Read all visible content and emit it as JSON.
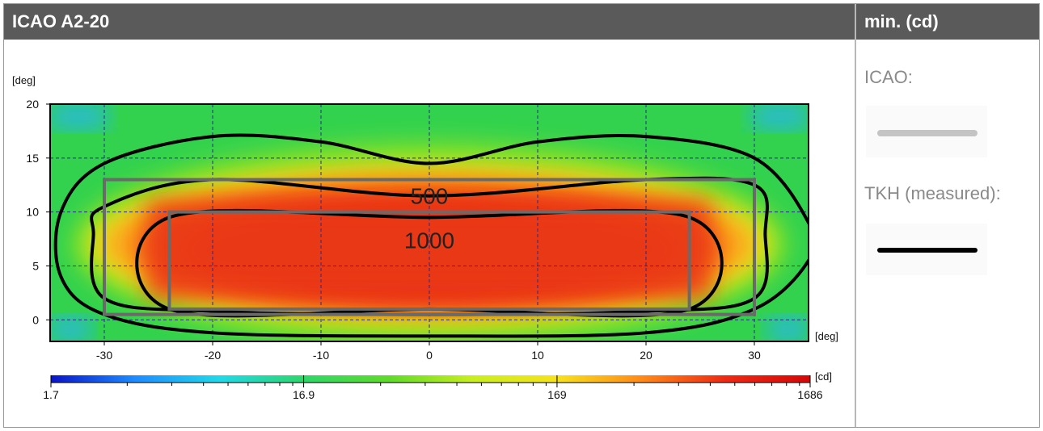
{
  "header": {
    "title": "ICAO A2-20",
    "side_title": "min. (cd)"
  },
  "legend_panel": {
    "items": [
      {
        "label": "ICAO:",
        "line_color": "#c4c4c4",
        "icon": "light-gray-line"
      },
      {
        "label": "TKH (measured):",
        "line_color": "#000000",
        "icon": "black-line"
      }
    ]
  },
  "chart_data": {
    "type": "heatmap",
    "title": "",
    "xlabel": "[deg]",
    "ylabel": "[deg]",
    "xlim": [
      -35,
      35
    ],
    "ylim": [
      -2,
      20
    ],
    "x_ticks": [
      -30,
      -20,
      -10,
      0,
      10,
      20,
      30
    ],
    "y_ticks": [
      0,
      5,
      10,
      15,
      20
    ],
    "grid": true,
    "colorbar": {
      "unit": "[cd]",
      "scale": "log",
      "min": 1.7,
      "max": 1686,
      "tick_labels": [
        "1.7",
        "16.9",
        "169",
        "1686"
      ],
      "tick_values": [
        1.7,
        16.9,
        169,
        1686
      ],
      "colors": [
        "#0a14c8",
        "#1e8cff",
        "#22d8e8",
        "#2fd56a",
        "#5fda2a",
        "#c8ee20",
        "#f6e21c",
        "#ff8a18",
        "#ec2a14",
        "#d40808"
      ]
    },
    "icao_boxes": [
      {
        "label": "500",
        "x": [
          -30,
          30
        ],
        "y": [
          0.5,
          13
        ]
      },
      {
        "label": "1000",
        "x": [
          -24,
          24
        ],
        "y": [
          1,
          10
        ]
      }
    ],
    "measured_contours": [
      {
        "name": "outer",
        "points": [
          [
            -30,
            14.5
          ],
          [
            -20,
            17
          ],
          [
            -10,
            16.5
          ],
          [
            0,
            14.5
          ],
          [
            10,
            16.5
          ],
          [
            20,
            17
          ],
          [
            30,
            15
          ],
          [
            35,
            9
          ],
          [
            35,
            5.5
          ],
          [
            30,
            1
          ],
          [
            20,
            -1.2
          ],
          [
            0,
            -1.5
          ],
          [
            -20,
            -1.2
          ],
          [
            -30,
            0.5
          ],
          [
            -34,
            4
          ],
          [
            -34,
            10
          ]
        ]
      },
      {
        "name": "500",
        "points": [
          [
            -30,
            10.5
          ],
          [
            -20,
            13
          ],
          [
            0,
            11.5
          ],
          [
            20,
            13
          ],
          [
            30,
            12.5
          ],
          [
            31,
            8
          ],
          [
            30,
            2
          ],
          [
            20,
            0.8
          ],
          [
            0,
            0.5
          ],
          [
            -20,
            0.8
          ],
          [
            -30,
            2
          ],
          [
            -31,
            8
          ]
        ]
      },
      {
        "name": "1000",
        "points": [
          [
            -24,
            9.5
          ],
          [
            0,
            9.5
          ],
          [
            24,
            9.5
          ],
          [
            24,
            1
          ],
          [
            0,
            1
          ],
          [
            -24,
            1
          ]
        ]
      }
    ]
  }
}
